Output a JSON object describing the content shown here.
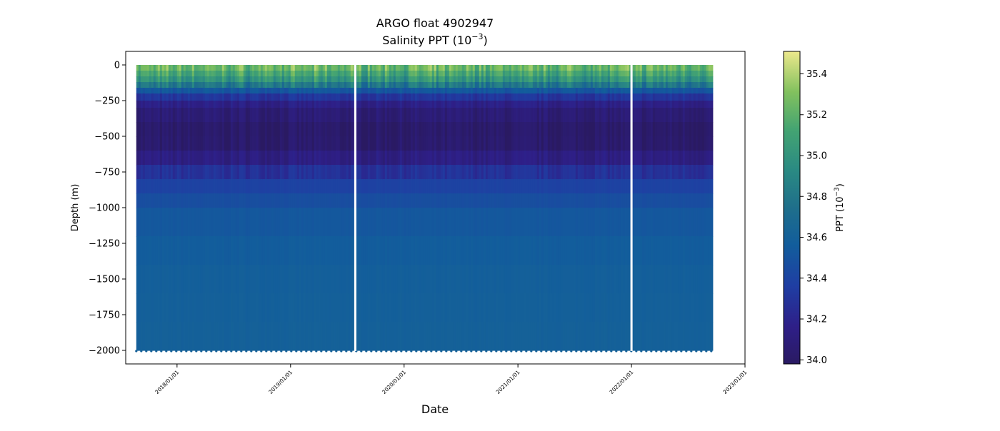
{
  "chart_data": {
    "type": "heatmap",
    "title": "ARGO float 4902947",
    "subtitle_base": "Salinity PPT (10",
    "subtitle_exp": "−3",
    "subtitle_close": ")",
    "xlabel": "Date",
    "ylabel": "Depth (m)",
    "x_ticks": [
      "2018/01/01",
      "2019/01/01",
      "2020/01/01",
      "2021/01/01",
      "2022/01/01",
      "2023/01/01"
    ],
    "y_ticks": [
      "0",
      "−250",
      "−500",
      "−750",
      "−1000",
      "−1250",
      "−1500",
      "−1750",
      "−2000"
    ],
    "y_tick_values": [
      0,
      -250,
      -500,
      -750,
      -1000,
      -1250,
      -1500,
      -1750,
      -2000
    ],
    "xlim": [
      "2017/07/20",
      "2023/01/01"
    ],
    "ylim": [
      -2095,
      95
    ],
    "data_start": "2017/08/23",
    "data_end": "2022/09/15",
    "gaps": [
      "2019/07/28",
      "2022/01/01"
    ],
    "colorbar": {
      "label_base": "PPT (10",
      "label_exp": "−3",
      "label_close": ")",
      "range": [
        33.98,
        35.51
      ],
      "ticks": [
        "34.0",
        "34.2",
        "34.4",
        "34.6",
        "34.8",
        "35.0",
        "35.2",
        "35.4"
      ],
      "tick_values": [
        34.0,
        34.2,
        34.4,
        34.6,
        34.8,
        35.0,
        35.2,
        35.4
      ],
      "colormap": "haline"
    },
    "profile": {
      "depths": [
        0,
        -50,
        -100,
        -150,
        -200,
        -250,
        -300,
        -400,
        -500,
        -600,
        -700,
        -800,
        -1000,
        -1200,
        -1500,
        -2000
      ],
      "salinity": [
        35.25,
        35.1,
        34.95,
        34.7,
        34.4,
        34.2,
        34.1,
        34.03,
        34.0,
        34.05,
        34.2,
        34.35,
        34.5,
        34.55,
        34.58,
        34.6
      ]
    },
    "grid": false
  }
}
